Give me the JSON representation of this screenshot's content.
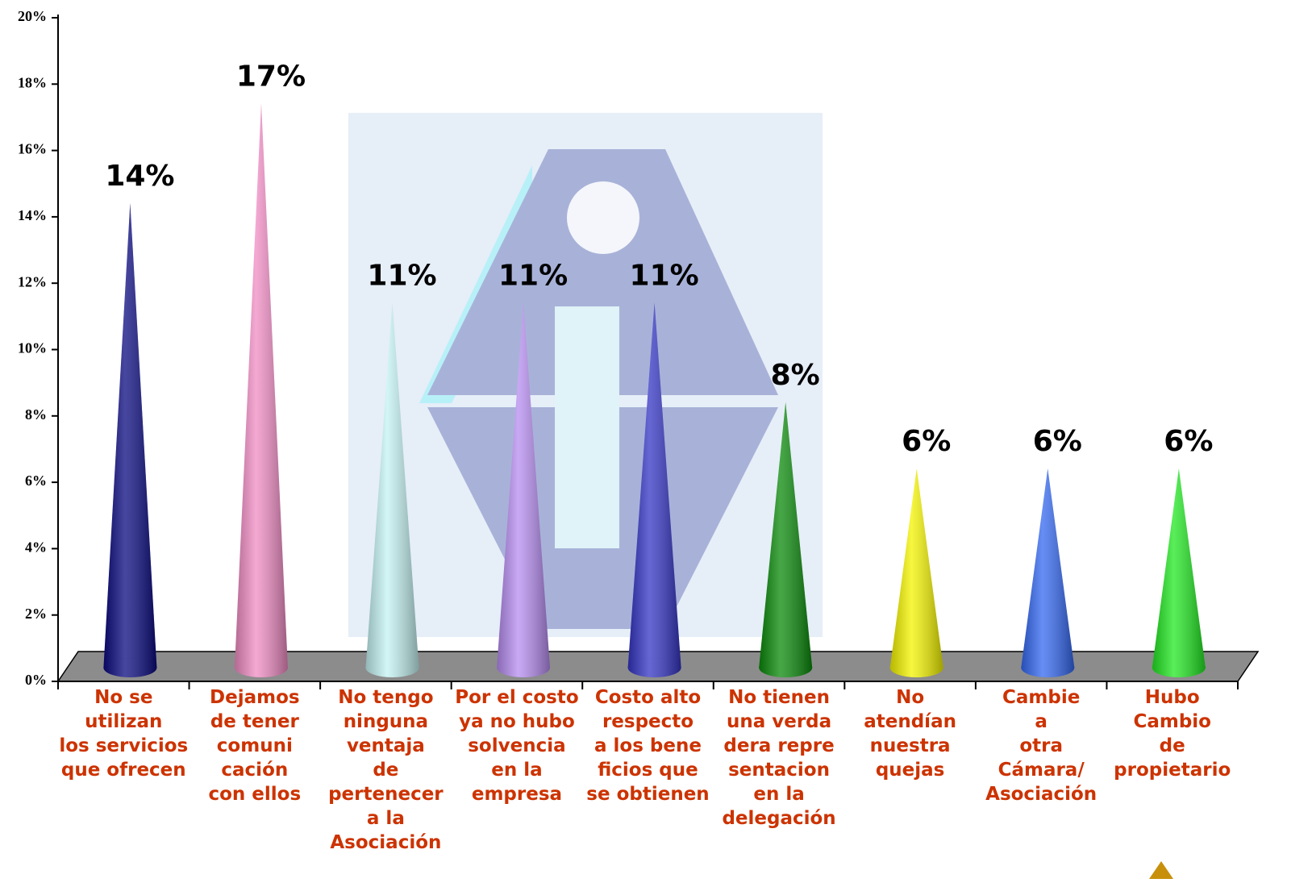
{
  "chart_data": {
    "type": "cone",
    "categories": [
      [
        "No se",
        "utilizan",
        "los servicios",
        "que ofrecen"
      ],
      [
        "Dejamos",
        "de tener",
        "comuni",
        "cación",
        "con ellos"
      ],
      [
        "No tengo",
        "ninguna",
        "ventaja",
        "de",
        "pertenecer",
        "a la",
        "Asociación"
      ],
      [
        "Por el costo",
        "ya no hubo",
        "solvencia",
        "en la",
        "empresa"
      ],
      [
        "Costo alto",
        "respecto",
        "a los bene",
        "ficios que",
        "se obtienen"
      ],
      [
        "No tienen",
        "una verda",
        "dera repre",
        "sentacion",
        "en la",
        "delegación"
      ],
      [
        "No",
        "atendían",
        "nuestra",
        "quejas"
      ],
      [
        "Cambie",
        "a",
        "otra",
        "Cámara/",
        "Asociación"
      ],
      [
        "Hubo",
        "Cambio",
        "de",
        "propietario"
      ]
    ],
    "values": [
      14,
      17,
      11,
      11,
      11,
      8,
      6,
      6,
      6
    ],
    "value_labels": [
      "14%",
      "17%",
      "11%",
      "11%",
      "11%",
      "8%",
      "6%",
      "6%",
      "6%"
    ],
    "colors": [
      "#0a0a80",
      "#f08cc4",
      "#c4f2f2",
      "#b68cf0",
      "#3434c4",
      "#0a8a0a",
      "#f4f400",
      "#3468f0",
      "#22e822"
    ],
    "ylim": [
      0,
      20
    ],
    "yticks": [
      {
        "value": 0,
        "label": "0%"
      },
      {
        "value": 2,
        "label": "2%"
      },
      {
        "value": 4,
        "label": "4%"
      },
      {
        "value": 6,
        "label": "6%"
      },
      {
        "value": 8,
        "label": "8%"
      },
      {
        "value": 10,
        "label": "10%"
      },
      {
        "value": 12,
        "label": "12%"
      },
      {
        "value": 14,
        "label": "14%"
      },
      {
        "value": 16,
        "label": "16%"
      },
      {
        "value": 18,
        "label": "18%"
      },
      {
        "value": 20,
        "label": "20%"
      }
    ]
  }
}
